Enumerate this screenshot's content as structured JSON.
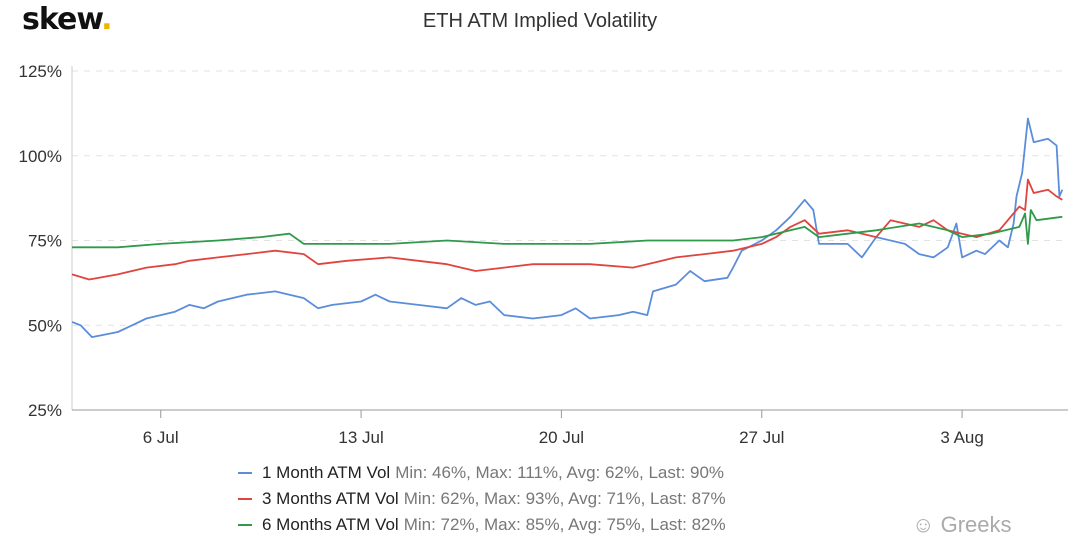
{
  "logo": {
    "text": "skew",
    "dot": "."
  },
  "watermark": "Greeks",
  "chart_data": {
    "type": "line",
    "title": "ETH ATM Implied Volatility",
    "xlabel": "",
    "ylabel": "",
    "x_unit": "days relative to 6 Jul",
    "xlim": [
      -3.1,
      31.7
    ],
    "ylim": [
      25,
      125
    ],
    "yticks": [
      25,
      50,
      75,
      100,
      125
    ],
    "ytick_labels": [
      "25%",
      "50%",
      "75%",
      "100%",
      "125%"
    ],
    "xticks": [
      0,
      7,
      14,
      21,
      28
    ],
    "xtick_labels": [
      "6 Jul",
      "13 Jul",
      "20 Jul",
      "27 Jul",
      "3 Aug"
    ],
    "grid": true,
    "legend_position": "bottom",
    "series": [
      {
        "name": "1 Month ATM Vol",
        "stats": "Min: 46%, Max: 111%, Avg: 62%, Last: 90%",
        "color": "#5b8ddb",
        "x": [
          -3.1,
          -2.8,
          -2.4,
          -1.5,
          -1,
          -0.5,
          0.5,
          1,
          1.5,
          2,
          3,
          4,
          5,
          5.5,
          6,
          7,
          7.5,
          8,
          9,
          10,
          10.5,
          11,
          11.5,
          12,
          13,
          14,
          14.5,
          15,
          16,
          16.5,
          17,
          17.2,
          18,
          18.5,
          19,
          19.8,
          20,
          20.3,
          21,
          21.5,
          22,
          22.5,
          22.8,
          23,
          24,
          24.5,
          25,
          26,
          26.5,
          27,
          27.5,
          27.8,
          28,
          28.5,
          28.8,
          29.3,
          29.6,
          29.8,
          29.9,
          30.1,
          30.3,
          30.5,
          31,
          31.3,
          31.4,
          31.5
        ],
        "y": [
          51,
          50,
          46.5,
          48,
          50,
          52,
          54,
          56,
          55,
          57,
          59,
          60,
          58,
          55,
          56,
          57,
          59,
          57,
          56,
          55,
          58,
          56,
          57,
          53,
          52,
          53,
          55,
          52,
          53,
          54,
          53,
          60,
          62,
          66,
          63,
          64,
          67,
          72,
          75,
          78,
          82,
          87,
          84,
          74,
          74,
          70,
          76,
          74,
          71,
          70,
          73,
          80,
          70,
          72,
          71,
          75,
          73,
          80,
          88,
          95,
          111,
          104,
          105,
          103,
          88,
          90
        ]
      },
      {
        "name": "3 Months ATM Vol",
        "stats": "Min: 62%, Max: 93%, Avg: 71%, Last: 87%",
        "color": "#e0443e",
        "x": [
          -3.1,
          -2.5,
          -1.5,
          -0.5,
          0.5,
          1,
          2,
          3,
          4,
          5,
          5.5,
          6.5,
          8,
          9,
          10,
          11,
          12,
          13,
          15,
          16.5,
          17,
          18,
          19,
          20,
          21,
          21.5,
          22,
          22.5,
          23,
          24,
          25,
          25.5,
          26.5,
          27,
          27.5,
          28,
          28.5,
          29.3,
          30,
          30.2,
          30.3,
          30.5,
          31,
          31.3,
          31.5
        ],
        "y": [
          65,
          63.5,
          65,
          67,
          68,
          69,
          70,
          71,
          72,
          71,
          68,
          69,
          70,
          69,
          68,
          66,
          67,
          68,
          68,
          67,
          68,
          70,
          71,
          72,
          74,
          76,
          79,
          81,
          77,
          78,
          76,
          81,
          79,
          81,
          78,
          77,
          76,
          78,
          85,
          84,
          93,
          89,
          90,
          88,
          87
        ]
      },
      {
        "name": "6 Months ATM Vol",
        "stats": "Min: 72%, Max: 85%, Avg: 75%, Last: 82%",
        "color": "#2e9a4a",
        "x": [
          -3.1,
          -1.5,
          0,
          2,
          3.5,
          4.5,
          5,
          8,
          10,
          12,
          15,
          17,
          20,
          21,
          22,
          22.5,
          23,
          24,
          25,
          26.5,
          27,
          27.5,
          28,
          29,
          30,
          30.2,
          30.3,
          30.4,
          30.6,
          31.5
        ],
        "y": [
          73,
          73,
          74,
          75,
          76,
          77,
          74,
          74,
          75,
          74,
          74,
          75,
          75,
          76,
          78,
          79,
          76,
          77,
          78,
          80,
          79,
          78,
          76,
          77,
          79,
          83,
          74,
          84,
          81,
          82
        ]
      }
    ]
  }
}
